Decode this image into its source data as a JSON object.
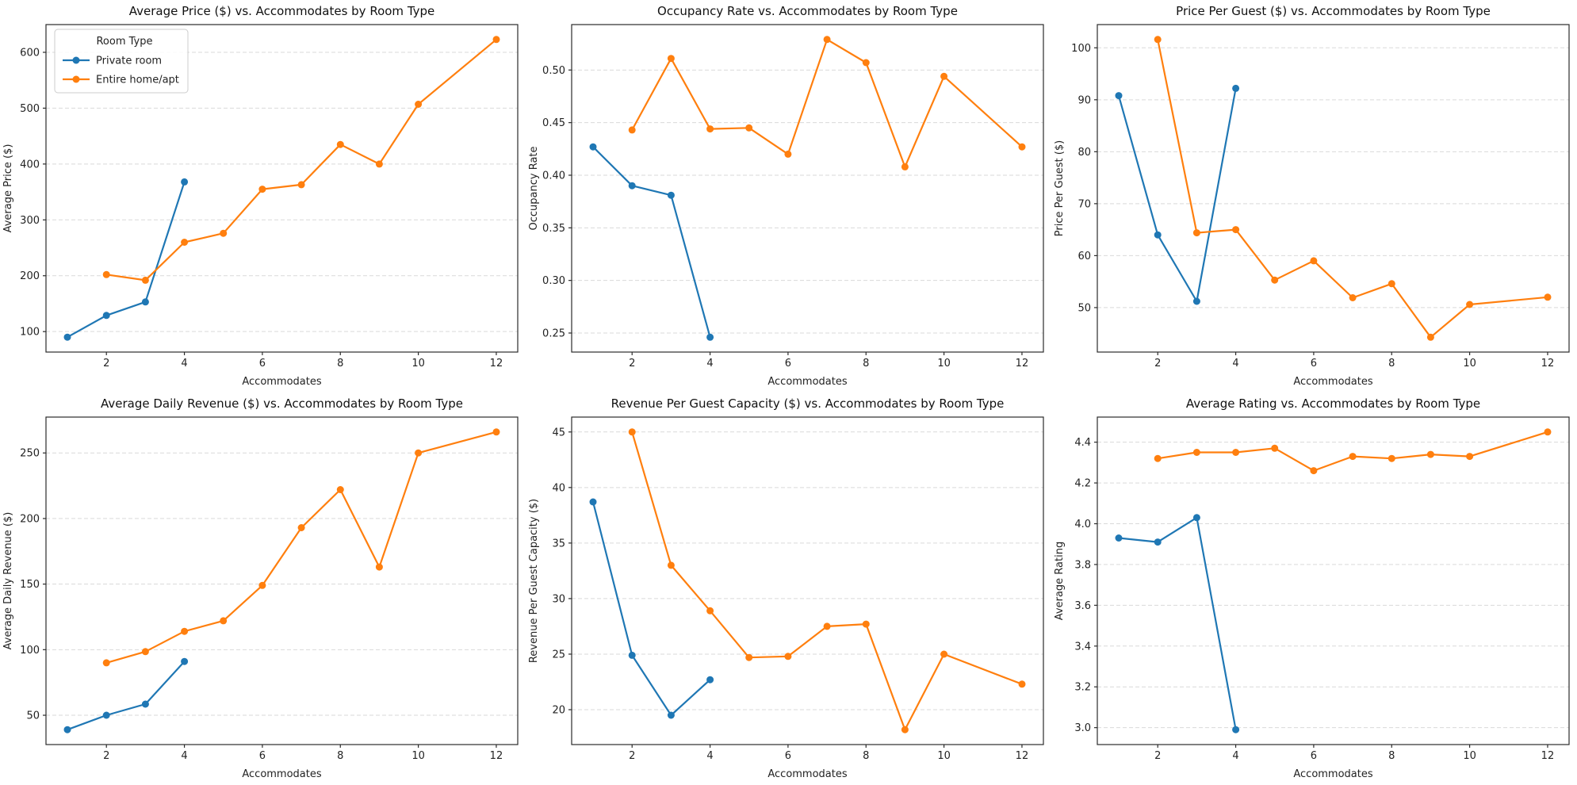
{
  "figure": {
    "background": "#ffffff",
    "grid_layout": "2x3",
    "colors": {
      "private_room": "#1f77b4",
      "entire_home_apt": "#ff7f0e",
      "gridline": "#d9d9d9",
      "axes_border": "#2b2b2b"
    }
  },
  "chart_data": [
    {
      "type": "line",
      "title": "Average Price ($) vs. Accommodates by Room Type",
      "xlabel": "Accommodates",
      "ylabel": "Average Price ($)",
      "xlim": [
        0.45,
        12.55
      ],
      "ylim": [
        63.35,
        649.65
      ],
      "xtick_values": [
        2,
        4,
        6,
        8,
        10,
        12
      ],
      "xtick_labels": [
        "2",
        "4",
        "6",
        "8",
        "10",
        "12"
      ],
      "ytick_values": [
        100,
        200,
        300,
        400,
        500,
        600
      ],
      "ytick_labels": [
        "100",
        "200",
        "300",
        "400",
        "500",
        "600"
      ],
      "grid": "y-dashed",
      "legend": {
        "show": true,
        "title": "Room Type",
        "position": "upper-left"
      },
      "series": [
        {
          "name": "Private room",
          "color": "#1f77b4",
          "x": [
            1,
            2,
            3,
            4
          ],
          "y": [
            90,
            129,
            153,
            368
          ]
        },
        {
          "name": "Entire home/apt",
          "color": "#ff7f0e",
          "x": [
            2,
            3,
            4,
            5,
            6,
            7,
            8,
            9,
            10,
            12
          ],
          "y": [
            202,
            192,
            260,
            276,
            355,
            363,
            435,
            400,
            507,
            623
          ]
        }
      ]
    },
    {
      "type": "line",
      "title": "Occupancy Rate vs. Accommodates by Room Type",
      "xlabel": "Accommodates",
      "ylabel": "Occupancy Rate",
      "xlim": [
        0.45,
        12.55
      ],
      "ylim": [
        0.2319,
        0.5432
      ],
      "xtick_values": [
        2,
        4,
        6,
        8,
        10,
        12
      ],
      "xtick_labels": [
        "2",
        "4",
        "6",
        "8",
        "10",
        "12"
      ],
      "ytick_values": [
        0.25,
        0.3,
        0.35,
        0.4,
        0.45,
        0.5
      ],
      "ytick_labels": [
        "0.25",
        "0.30",
        "0.35",
        "0.40",
        "0.45",
        "0.50"
      ],
      "grid": "y-dashed",
      "legend": {
        "show": false
      },
      "series": [
        {
          "name": "Private room",
          "color": "#1f77b4",
          "x": [
            1,
            2,
            3,
            4
          ],
          "y": [
            0.427,
            0.39,
            0.381,
            0.246
          ]
        },
        {
          "name": "Entire home/apt",
          "color": "#ff7f0e",
          "x": [
            2,
            3,
            4,
            5,
            6,
            7,
            8,
            9,
            10,
            12
          ],
          "y": [
            0.443,
            0.511,
            0.444,
            0.445,
            0.42,
            0.529,
            0.507,
            0.408,
            0.494,
            0.427
          ]
        }
      ]
    },
    {
      "type": "line",
      "title": "Price Per Guest ($) vs. Accommodates by Room Type",
      "xlabel": "Accommodates",
      "ylabel": "Price Per Guest ($)",
      "xlim": [
        0.45,
        12.55
      ],
      "ylim": [
        41.44,
        104.47
      ],
      "xtick_values": [
        2,
        4,
        6,
        8,
        10,
        12
      ],
      "xtick_labels": [
        "2",
        "4",
        "6",
        "8",
        "10",
        "12"
      ],
      "ytick_values": [
        50,
        60,
        70,
        80,
        90,
        100
      ],
      "ytick_labels": [
        "50",
        "60",
        "70",
        "80",
        "90",
        "100"
      ],
      "grid": "y-dashed",
      "legend": {
        "show": false
      },
      "series": [
        {
          "name": "Private room",
          "color": "#1f77b4",
          "x": [
            1,
            2,
            3,
            4
          ],
          "y": [
            90.8,
            64.0,
            51.2,
            92.2
          ]
        },
        {
          "name": "Entire home/apt",
          "color": "#ff7f0e",
          "x": [
            2,
            3,
            4,
            5,
            6,
            7,
            8,
            9,
            10,
            12
          ],
          "y": [
            101.6,
            64.4,
            65.0,
            55.3,
            59.0,
            51.9,
            54.6,
            44.3,
            50.6,
            52.0
          ]
        }
      ]
    },
    {
      "type": "line",
      "title": "Average Daily Revenue ($) vs. Accommodates by Room Type",
      "xlabel": "Accommodates",
      "ylabel": "Average Daily Revenue ($)",
      "xlim": [
        0.45,
        12.55
      ],
      "ylim": [
        27.65,
        277.35
      ],
      "xtick_values": [
        2,
        4,
        6,
        8,
        10,
        12
      ],
      "xtick_labels": [
        "2",
        "4",
        "6",
        "8",
        "10",
        "12"
      ],
      "ytick_values": [
        50,
        100,
        150,
        200,
        250
      ],
      "ytick_labels": [
        "50",
        "100",
        "150",
        "200",
        "250"
      ],
      "grid": "y-dashed",
      "legend": {
        "show": false
      },
      "series": [
        {
          "name": "Private room",
          "color": "#1f77b4",
          "x": [
            1,
            2,
            3,
            4
          ],
          "y": [
            39,
            50,
            58.5,
            91
          ]
        },
        {
          "name": "Entire home/apt",
          "color": "#ff7f0e",
          "x": [
            2,
            3,
            4,
            5,
            6,
            7,
            8,
            9,
            10,
            12
          ],
          "y": [
            90,
            98.5,
            114,
            122,
            149,
            193,
            222,
            163,
            250,
            266
          ]
        }
      ]
    },
    {
      "type": "line",
      "title": "Revenue Per Guest Capacity ($) vs. Accommodates by Room Type",
      "xlabel": "Accommodates",
      "ylabel": "Revenue Per Guest Capacity ($)",
      "xlim": [
        0.45,
        12.55
      ],
      "ylim": [
        16.86,
        46.34
      ],
      "xtick_values": [
        2,
        4,
        6,
        8,
        10,
        12
      ],
      "xtick_labels": [
        "2",
        "4",
        "6",
        "8",
        "10",
        "12"
      ],
      "ytick_values": [
        20,
        25,
        30,
        35,
        40,
        45
      ],
      "ytick_labels": [
        "20",
        "25",
        "30",
        "35",
        "40",
        "45"
      ],
      "grid": "y-dashed",
      "legend": {
        "show": false
      },
      "series": [
        {
          "name": "Private room",
          "color": "#1f77b4",
          "x": [
            1,
            2,
            3,
            4
          ],
          "y": [
            38.7,
            24.9,
            19.5,
            22.7
          ]
        },
        {
          "name": "Entire home/apt",
          "color": "#ff7f0e",
          "x": [
            2,
            3,
            4,
            5,
            6,
            7,
            8,
            9,
            10,
            12
          ],
          "y": [
            45.0,
            33.0,
            28.9,
            24.7,
            24.8,
            27.5,
            27.7,
            18.2,
            25.0,
            22.3
          ]
        }
      ]
    },
    {
      "type": "line",
      "title": "Average Rating vs. Accommodates by Room Type",
      "xlabel": "Accommodates",
      "ylabel": "Average Rating",
      "xlim": [
        0.45,
        12.55
      ],
      "ylim": [
        2.917,
        4.523
      ],
      "xtick_values": [
        2,
        4,
        6,
        8,
        10,
        12
      ],
      "xtick_labels": [
        "2",
        "4",
        "6",
        "8",
        "10",
        "12"
      ],
      "ytick_values": [
        3.0,
        3.2,
        3.4,
        3.6,
        3.8,
        4.0,
        4.2,
        4.4
      ],
      "ytick_labels": [
        "3.0",
        "3.2",
        "3.4",
        "3.6",
        "3.8",
        "4.0",
        "4.2",
        "4.4"
      ],
      "grid": "y-dashed",
      "legend": {
        "show": false
      },
      "series": [
        {
          "name": "Private room",
          "color": "#1f77b4",
          "x": [
            1,
            2,
            3,
            4
          ],
          "y": [
            3.93,
            3.91,
            4.03,
            2.99
          ]
        },
        {
          "name": "Entire home/apt",
          "color": "#ff7f0e",
          "x": [
            2,
            3,
            4,
            5,
            6,
            7,
            8,
            9,
            10,
            12
          ],
          "y": [
            4.32,
            4.35,
            4.35,
            4.37,
            4.26,
            4.33,
            4.32,
            4.34,
            4.33,
            4.45
          ]
        }
      ]
    }
  ]
}
